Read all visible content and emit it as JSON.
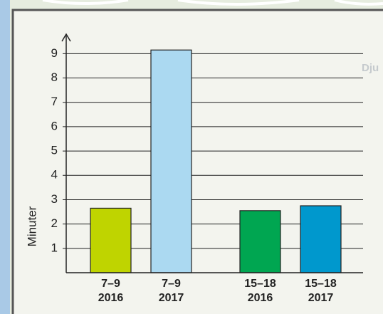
{
  "chart_data": {
    "type": "bar",
    "map_label": "Dju",
    "y_label": "Minuter",
    "categories": [
      "7–9\n2016",
      "7–9\n2017",
      "15–18\n2016",
      "15–18\n2017"
    ],
    "values": [
      2.65,
      9.15,
      2.55,
      2.75
    ],
    "colors": [
      "#bfd400",
      "#abd9f1",
      "#00a651",
      "#0098cd"
    ],
    "ylim": [
      0,
      9.8
    ],
    "yticks": [
      1,
      2,
      3,
      4,
      5,
      6,
      7,
      8,
      9
    ],
    "grid": true
  }
}
